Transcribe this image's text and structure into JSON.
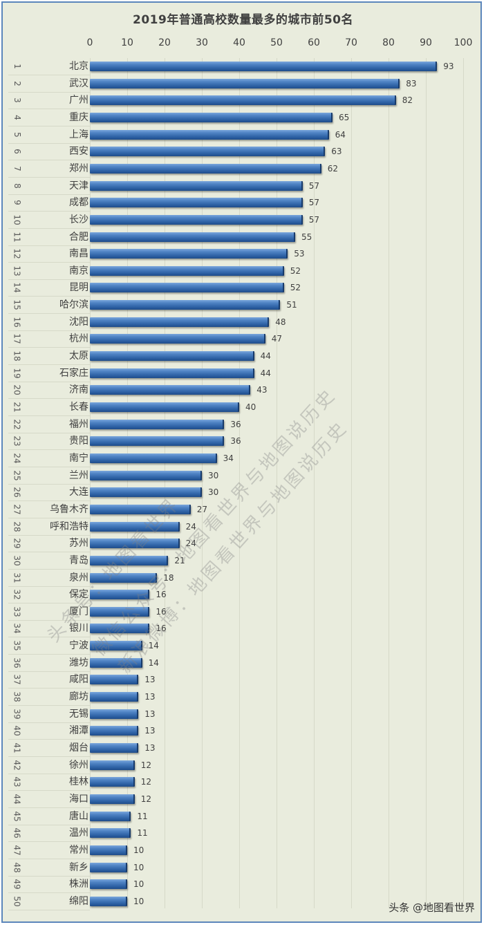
{
  "chart_data": {
    "type": "bar",
    "orientation": "horizontal",
    "title": "2019年普通高校数量最多的城市前50名",
    "xlabel": "",
    "ylabel": "",
    "xlim": [
      0,
      100
    ],
    "x_ticks": [
      "0",
      "10",
      "20",
      "30",
      "40",
      "50",
      "60",
      "70",
      "80",
      "90",
      "100"
    ],
    "grid": true,
    "legend": null,
    "series_color": "#2f63a6",
    "ranks": [
      "1",
      "2",
      "3",
      "4",
      "5",
      "6",
      "7",
      "8",
      "9",
      "10",
      "11",
      "12",
      "13",
      "14",
      "15",
      "16",
      "17",
      "18",
      "19",
      "20",
      "21",
      "22",
      "23",
      "24",
      "25",
      "26",
      "27",
      "28",
      "29",
      "30",
      "31",
      "32",
      "33",
      "34",
      "35",
      "36",
      "37",
      "38",
      "39",
      "40",
      "41",
      "42",
      "43",
      "44",
      "45",
      "46",
      "47",
      "48",
      "49",
      "50"
    ],
    "categories": [
      "北京",
      "武汉",
      "广州",
      "重庆",
      "上海",
      "西安",
      "郑州",
      "天津",
      "成都",
      "长沙",
      "合肥",
      "南昌",
      "南京",
      "昆明",
      "哈尔滨",
      "沈阳",
      "杭州",
      "太原",
      "石家庄",
      "济南",
      "长春",
      "福州",
      "贵阳",
      "南宁",
      "兰州",
      "大连",
      "乌鲁木齐",
      "呼和浩特",
      "苏州",
      "青岛",
      "泉州",
      "保定",
      "厦门",
      "银川",
      "宁波",
      "潍坊",
      "咸阳",
      "廊坊",
      "无锡",
      "湘潭",
      "烟台",
      "徐州",
      "桂林",
      "海口",
      "唐山",
      "温州",
      "常州",
      "新乡",
      "株洲",
      "绵阳"
    ],
    "values": [
      93,
      83,
      82,
      65,
      64,
      63,
      62,
      57,
      57,
      57,
      55,
      53,
      52,
      52,
      51,
      48,
      47,
      44,
      44,
      43,
      40,
      36,
      36,
      34,
      30,
      30,
      27,
      24,
      24,
      21,
      18,
      16,
      16,
      16,
      14,
      14,
      13,
      13,
      13,
      13,
      13,
      12,
      12,
      12,
      11,
      11,
      10,
      10,
      10,
      10
    ]
  },
  "watermarks": [
    "头条号：地图看世界",
    "微信公众号：地图看世界与地图说历史",
    "新浪微博：地图看世界与地图说历史"
  ],
  "credit": "头条 @地图看世界"
}
